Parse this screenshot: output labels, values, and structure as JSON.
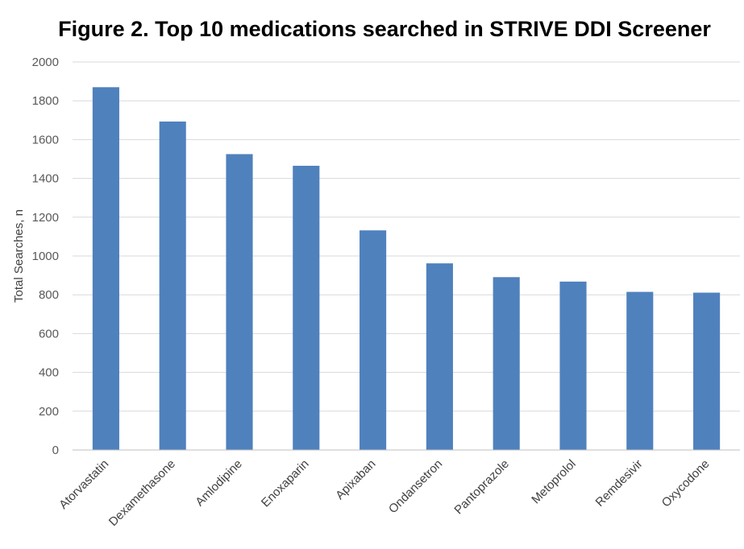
{
  "colors": {
    "bar": "#4F81BD",
    "grid": "#D9D9D9",
    "axis": "#BFBFBF"
  },
  "chart_data": {
    "type": "bar",
    "title": "Figure 2. Top 10 medications searched in STRIVE DDI Screener",
    "xlabel": "",
    "ylabel": "Total Searches, n",
    "ylim": [
      0,
      2000
    ],
    "yticks": [
      0,
      200,
      400,
      600,
      800,
      1000,
      1200,
      1400,
      1600,
      1800,
      2000
    ],
    "grid": true,
    "categories": [
      "Atorvastatin",
      "Dexamethasone",
      "Amlodipine",
      "Enoxaparin",
      "Apixaban",
      "Ondansetron",
      "Pantoprazole",
      "Metoprolol",
      "Remdesivir",
      "Oxycodone"
    ],
    "values": [
      1870,
      1693,
      1525,
      1465,
      1132,
      962,
      891,
      868,
      815,
      811
    ]
  }
}
